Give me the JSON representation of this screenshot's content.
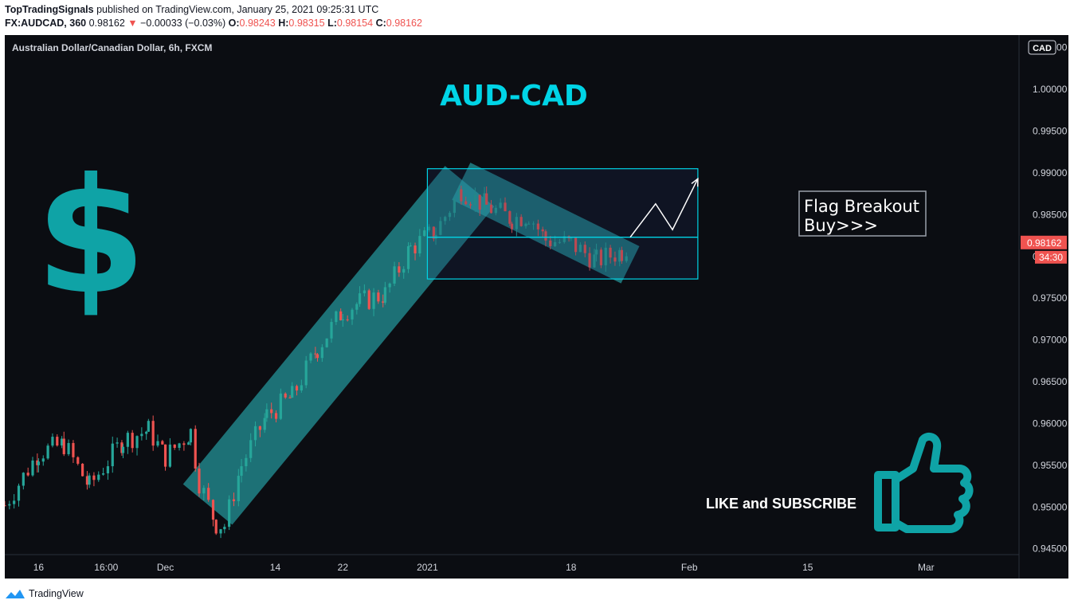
{
  "header": {
    "author": "TopTradingSignals",
    "published_text": "published on TradingView.com, January 25, 2021 09:25:31 UTC",
    "symbol": "FX:AUDCAD, 360",
    "last": "0.98162",
    "change_arrow": "▼",
    "change": "−0.00033 (−0.03%)",
    "open_label": "O:",
    "open": "0.98243",
    "high_label": "H:",
    "high": "0.98315",
    "low_label": "L:",
    "low": "0.98154",
    "close_label": "C:",
    "close": "0.98162"
  },
  "chart_title_bar": "Australian Dollar/Canadian Dollar, 6h, FXCM",
  "annotations": {
    "title": "AUD-CAD",
    "dollar_sign": "$",
    "flag_box": [
      "Flag Breakout",
      "Buy>>>"
    ],
    "subscribe": "LIKE and SUBSCRIBE"
  },
  "price_axis": {
    "currency": "CAD",
    "last_price_tag": "0.98162",
    "countdown_tag": "34:30"
  },
  "footer": {
    "brand": "TradingView"
  },
  "colors": {
    "background": "#0b0d12",
    "up_candle": "#26a69a",
    "down_candle": "#ef5350",
    "accent": "#00d4e6",
    "channel_fill": "#2ec4c8",
    "price_tag": "#ef5350"
  },
  "chart_data": {
    "type": "candlestick",
    "title": "Australian Dollar/Canadian Dollar, 6h, FXCM",
    "ylim": [
      0.9443,
      1.0065
    ],
    "yticks": [
      0.945,
      0.95,
      0.955,
      0.96,
      0.965,
      0.97,
      0.975,
      0.98,
      0.985,
      0.99,
      0.995,
      1.0,
      1.005
    ],
    "ytick_labels": [
      "0.94500",
      "0.95000",
      "0.95500",
      "0.96000",
      "0.96500",
      "0.97000",
      "0.97500",
      "0.98000",
      "0.98500",
      "0.99000",
      "0.99500",
      "1.00000",
      "1.00500"
    ],
    "xtick_labels": [
      {
        "label": "16",
        "date": "2020-11-16"
      },
      {
        "label": "16:00",
        "date": "2020-11-24"
      },
      {
        "label": "Dec",
        "date": "2020-12-01"
      },
      {
        "label": "14",
        "date": "2020-12-14"
      },
      {
        "label": "22",
        "date": "2020-12-22"
      },
      {
        "label": "2021",
        "date": "2021-01-01"
      },
      {
        "label": "18",
        "date": "2021-01-18"
      },
      {
        "label": "Feb",
        "date": "2021-02-01"
      },
      {
        "label": "15",
        "date": "2021-02-15"
      },
      {
        "label": "Mar",
        "date": "2021-03-01"
      }
    ],
    "xrange": [
      "2020-11-12",
      "2021-03-12"
    ],
    "series_close_path": [
      {
        "date": "2020-11-12",
        "close": 0.9502
      },
      {
        "date": "2020-11-16",
        "close": 0.9565
      },
      {
        "date": "2020-11-19",
        "close": 0.9575
      },
      {
        "date": "2020-11-22",
        "close": 0.9525
      },
      {
        "date": "2020-11-26",
        "close": 0.958
      },
      {
        "date": "2020-11-29",
        "close": 0.9592
      },
      {
        "date": "2020-12-01",
        "close": 0.956
      },
      {
        "date": "2020-12-04",
        "close": 0.959
      },
      {
        "date": "2020-12-05",
        "close": 0.953
      },
      {
        "date": "2020-12-07",
        "close": 0.948
      },
      {
        "date": "2020-12-08",
        "close": 0.9478
      },
      {
        "date": "2020-12-10",
        "close": 0.955
      },
      {
        "date": "2020-12-13",
        "close": 0.961
      },
      {
        "date": "2020-12-16",
        "close": 0.9632
      },
      {
        "date": "2020-12-19",
        "close": 0.969
      },
      {
        "date": "2020-12-22",
        "close": 0.9735
      },
      {
        "date": "2020-12-24",
        "close": 0.9745
      },
      {
        "date": "2020-12-27",
        "close": 0.9755
      },
      {
        "date": "2020-12-30",
        "close": 0.981
      },
      {
        "date": "2021-01-02",
        "close": 0.983
      },
      {
        "date": "2021-01-05",
        "close": 0.988
      },
      {
        "date": "2021-01-08",
        "close": 0.986
      },
      {
        "date": "2021-01-11",
        "close": 0.9845
      },
      {
        "date": "2021-01-13",
        "close": 0.985
      },
      {
        "date": "2021-01-15",
        "close": 0.982
      },
      {
        "date": "2021-01-18",
        "close": 0.9815
      },
      {
        "date": "2021-01-21",
        "close": 0.9795
      },
      {
        "date": "2021-01-24",
        "close": 0.9806
      },
      {
        "date": "2021-01-25",
        "close": 0.98162
      }
    ],
    "drawings": {
      "consolidation_box": {
        "from": "2021-01-01",
        "to": "2021-02-02",
        "top": 0.9905,
        "bottom": 0.9773
      },
      "breakout_level": 0.9823,
      "arrow_path": [
        {
          "date": "2021-01-25",
          "price": 0.9823
        },
        {
          "date": "2021-01-28",
          "price": 0.9863
        },
        {
          "date": "2021-01-30",
          "price": 0.9832
        },
        {
          "date": "2021-02-02",
          "price": 0.9893
        }
      ]
    }
  }
}
